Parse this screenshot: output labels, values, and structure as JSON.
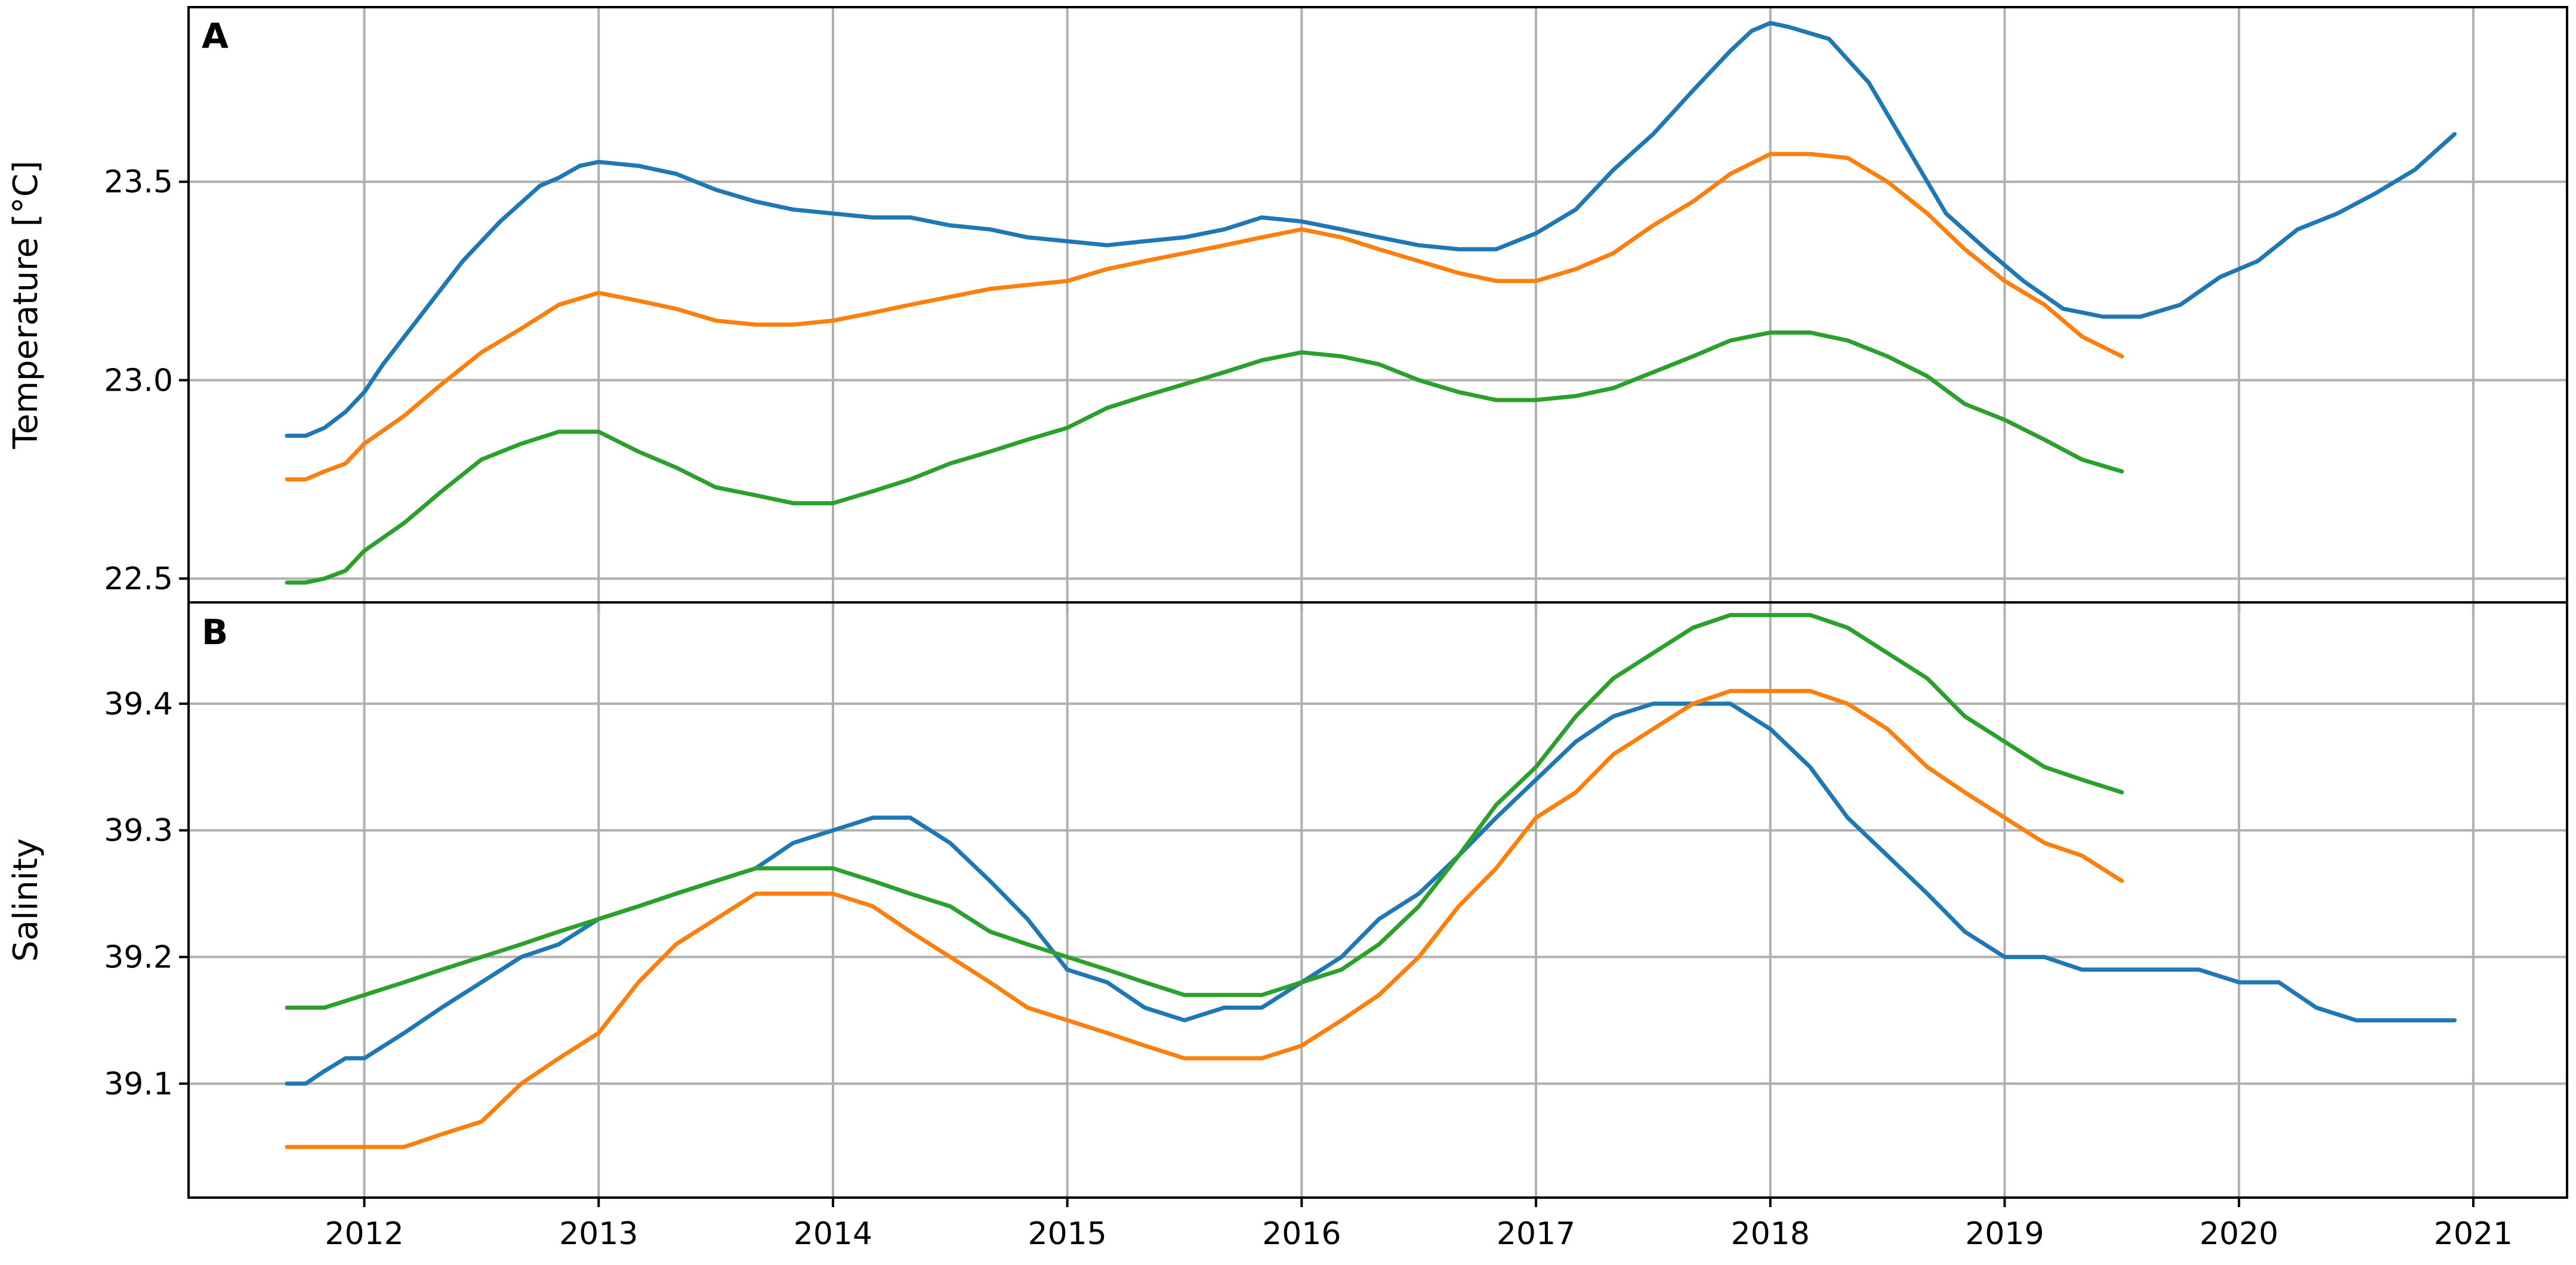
{
  "chart_data": [
    {
      "type": "line",
      "panel_label": "A",
      "title": "",
      "xlabel": "",
      "ylabel": "Temperature [°C]",
      "xlim": [
        2011.25,
        2021.4
      ],
      "ylim": [
        22.44,
        23.94
      ],
      "xticks": [
        2012,
        2013,
        2014,
        2015,
        2016,
        2017,
        2018,
        2019,
        2020,
        2021
      ],
      "yticks": [
        22.5,
        23.0,
        23.5
      ],
      "ytick_labels": [
        "22.5",
        "23.0",
        "23.5"
      ],
      "grid": true,
      "series": [
        {
          "color": "#1f77b4",
          "x": [
            2011.67,
            2011.75,
            2011.83,
            2011.92,
            2012.0,
            2012.08,
            2012.25,
            2012.42,
            2012.58,
            2012.75,
            2012.83,
            2012.92,
            2013.0,
            2013.17,
            2013.33,
            2013.5,
            2013.67,
            2013.83,
            2014.0,
            2014.17,
            2014.33,
            2014.5,
            2014.67,
            2014.83,
            2015.0,
            2015.17,
            2015.33,
            2015.5,
            2015.67,
            2015.83,
            2016.0,
            2016.17,
            2016.33,
            2016.5,
            2016.67,
            2016.83,
            2017.0,
            2017.17,
            2017.33,
            2017.5,
            2017.67,
            2017.83,
            2017.92,
            2018.0,
            2018.08,
            2018.25,
            2018.42,
            2018.58,
            2018.75,
            2018.92,
            2019.08,
            2019.25,
            2019.42,
            2019.58,
            2019.75,
            2019.92,
            2020.08,
            2020.25,
            2020.42,
            2020.58,
            2020.75,
            2020.92
          ],
          "y": [
            22.86,
            22.86,
            22.88,
            22.92,
            22.97,
            23.04,
            23.17,
            23.3,
            23.4,
            23.49,
            23.51,
            23.54,
            23.55,
            23.54,
            23.52,
            23.48,
            23.45,
            23.43,
            23.42,
            23.41,
            23.41,
            23.39,
            23.38,
            23.36,
            23.35,
            23.34,
            23.35,
            23.36,
            23.38,
            23.41,
            23.4,
            23.38,
            23.36,
            23.34,
            23.33,
            23.33,
            23.37,
            23.43,
            23.53,
            23.62,
            23.73,
            23.83,
            23.88,
            23.9,
            23.89,
            23.86,
            23.75,
            23.59,
            23.42,
            23.33,
            23.25,
            23.18,
            23.16,
            23.16,
            23.19,
            23.26,
            23.3,
            23.38,
            23.42,
            23.47,
            23.53,
            23.62
          ]
        },
        {
          "color": "#ff7f0e",
          "x": [
            2011.67,
            2011.75,
            2011.83,
            2011.92,
            2012.0,
            2012.17,
            2012.33,
            2012.5,
            2012.67,
            2012.83,
            2013.0,
            2013.17,
            2013.33,
            2013.5,
            2013.67,
            2013.83,
            2014.0,
            2014.17,
            2014.33,
            2014.5,
            2014.67,
            2014.83,
            2015.0,
            2015.17,
            2015.33,
            2015.5,
            2015.67,
            2015.83,
            2016.0,
            2016.17,
            2016.33,
            2016.5,
            2016.67,
            2016.83,
            2017.0,
            2017.17,
            2017.33,
            2017.5,
            2017.67,
            2017.83,
            2018.0,
            2018.17,
            2018.33,
            2018.5,
            2018.67,
            2018.83,
            2019.0,
            2019.17,
            2019.33,
            2019.5
          ],
          "y": [
            22.75,
            22.75,
            22.77,
            22.79,
            22.84,
            22.91,
            22.99,
            23.07,
            23.13,
            23.19,
            23.22,
            23.2,
            23.18,
            23.15,
            23.14,
            23.14,
            23.15,
            23.17,
            23.19,
            23.21,
            23.23,
            23.24,
            23.25,
            23.28,
            23.3,
            23.32,
            23.34,
            23.36,
            23.38,
            23.36,
            23.33,
            23.3,
            23.27,
            23.25,
            23.25,
            23.28,
            23.32,
            23.39,
            23.45,
            23.52,
            23.57,
            23.57,
            23.56,
            23.5,
            23.42,
            23.33,
            23.25,
            23.19,
            23.11,
            23.06
          ]
        },
        {
          "color": "#2ca02c",
          "x": [
            2011.67,
            2011.75,
            2011.83,
            2011.92,
            2012.0,
            2012.17,
            2012.33,
            2012.5,
            2012.67,
            2012.83,
            2013.0,
            2013.17,
            2013.33,
            2013.5,
            2013.67,
            2013.83,
            2014.0,
            2014.17,
            2014.33,
            2014.5,
            2014.67,
            2014.83,
            2015.0,
            2015.17,
            2015.33,
            2015.5,
            2015.67,
            2015.83,
            2016.0,
            2016.17,
            2016.33,
            2016.5,
            2016.67,
            2016.83,
            2017.0,
            2017.17,
            2017.33,
            2017.5,
            2017.67,
            2017.83,
            2018.0,
            2018.17,
            2018.33,
            2018.5,
            2018.67,
            2018.83,
            2019.0,
            2019.17,
            2019.33,
            2019.5
          ],
          "y": [
            22.49,
            22.49,
            22.5,
            22.52,
            22.57,
            22.64,
            22.72,
            22.8,
            22.84,
            22.87,
            22.87,
            22.82,
            22.78,
            22.73,
            22.71,
            22.69,
            22.69,
            22.72,
            22.75,
            22.79,
            22.82,
            22.85,
            22.88,
            22.93,
            22.96,
            22.99,
            23.02,
            23.05,
            23.07,
            23.06,
            23.04,
            23.0,
            22.97,
            22.95,
            22.95,
            22.96,
            22.98,
            23.02,
            23.06,
            23.1,
            23.12,
            23.12,
            23.1,
            23.06,
            23.01,
            22.94,
            22.9,
            22.85,
            22.8,
            22.77
          ]
        }
      ]
    },
    {
      "type": "line",
      "panel_label": "B",
      "title": "",
      "xlabel": "",
      "ylabel": "Salinity",
      "xlim": [
        2011.25,
        2021.4
      ],
      "ylim": [
        39.01,
        39.48
      ],
      "xticks": [
        2012,
        2013,
        2014,
        2015,
        2016,
        2017,
        2018,
        2019,
        2020,
        2021
      ],
      "xtick_labels": [
        "2012",
        "2013",
        "2014",
        "2015",
        "2016",
        "2017",
        "2018",
        "2019",
        "2020",
        "2021"
      ],
      "yticks": [
        39.1,
        39.2,
        39.3,
        39.4
      ],
      "ytick_labels": [
        "39.1",
        "39.2",
        "39.3",
        "39.4"
      ],
      "grid": true,
      "series": [
        {
          "color": "#1f77b4",
          "x": [
            2011.67,
            2011.75,
            2011.83,
            2011.92,
            2012.0,
            2012.17,
            2012.33,
            2012.5,
            2012.67,
            2012.83,
            2013.0,
            2013.17,
            2013.33,
            2013.5,
            2013.67,
            2013.83,
            2014.0,
            2014.17,
            2014.33,
            2014.5,
            2014.67,
            2014.83,
            2015.0,
            2015.17,
            2015.33,
            2015.5,
            2015.67,
            2015.83,
            2016.0,
            2016.17,
            2016.33,
            2016.5,
            2016.67,
            2016.83,
            2017.0,
            2017.17,
            2017.33,
            2017.5,
            2017.67,
            2017.83,
            2018.0,
            2018.17,
            2018.33,
            2018.5,
            2018.67,
            2018.83,
            2019.0,
            2019.17,
            2019.33,
            2019.5,
            2019.67,
            2019.83,
            2020.0,
            2020.17,
            2020.33,
            2020.5,
            2020.67,
            2020.83,
            2020.92
          ],
          "y": [
            39.1,
            39.1,
            39.11,
            39.12,
            39.12,
            39.14,
            39.16,
            39.18,
            39.2,
            39.21,
            39.23,
            39.24,
            39.25,
            39.26,
            39.27,
            39.29,
            39.3,
            39.31,
            39.31,
            39.29,
            39.26,
            39.23,
            39.19,
            39.18,
            39.16,
            39.15,
            39.16,
            39.16,
            39.18,
            39.2,
            39.23,
            39.25,
            39.28,
            39.31,
            39.34,
            39.37,
            39.39,
            39.4,
            39.4,
            39.4,
            39.38,
            39.35,
            39.31,
            39.28,
            39.25,
            39.22,
            39.2,
            39.2,
            39.19,
            39.19,
            39.19,
            39.19,
            39.18,
            39.18,
            39.16,
            39.15,
            39.15,
            39.15,
            39.15
          ]
        },
        {
          "color": "#ff7f0e",
          "x": [
            2011.67,
            2011.83,
            2012.0,
            2012.17,
            2012.33,
            2012.5,
            2012.67,
            2012.83,
            2013.0,
            2013.17,
            2013.33,
            2013.5,
            2013.67,
            2013.83,
            2014.0,
            2014.17,
            2014.33,
            2014.5,
            2014.67,
            2014.83,
            2015.0,
            2015.17,
            2015.33,
            2015.5,
            2015.67,
            2015.83,
            2016.0,
            2016.17,
            2016.33,
            2016.5,
            2016.67,
            2016.83,
            2017.0,
            2017.17,
            2017.33,
            2017.5,
            2017.67,
            2017.83,
            2018.0,
            2018.17,
            2018.33,
            2018.5,
            2018.67,
            2018.83,
            2019.0,
            2019.17,
            2019.33,
            2019.5
          ],
          "y": [
            39.05,
            39.05,
            39.05,
            39.05,
            39.06,
            39.07,
            39.1,
            39.12,
            39.14,
            39.18,
            39.21,
            39.23,
            39.25,
            39.25,
            39.25,
            39.24,
            39.22,
            39.2,
            39.18,
            39.16,
            39.15,
            39.14,
            39.13,
            39.12,
            39.12,
            39.12,
            39.13,
            39.15,
            39.17,
            39.2,
            39.24,
            39.27,
            39.31,
            39.33,
            39.36,
            39.38,
            39.4,
            39.41,
            39.41,
            39.41,
            39.4,
            39.38,
            39.35,
            39.33,
            39.31,
            39.29,
            39.28,
            39.26
          ]
        },
        {
          "color": "#2ca02c",
          "x": [
            2011.67,
            2011.83,
            2012.0,
            2012.17,
            2012.33,
            2012.5,
            2012.67,
            2012.83,
            2013.0,
            2013.17,
            2013.33,
            2013.5,
            2013.67,
            2013.83,
            2014.0,
            2014.17,
            2014.33,
            2014.5,
            2014.67,
            2014.83,
            2015.0,
            2015.17,
            2015.33,
            2015.5,
            2015.67,
            2015.83,
            2016.0,
            2016.17,
            2016.33,
            2016.5,
            2016.67,
            2016.83,
            2017.0,
            2017.17,
            2017.33,
            2017.5,
            2017.67,
            2017.83,
            2018.0,
            2018.17,
            2018.33,
            2018.5,
            2018.67,
            2018.83,
            2019.0,
            2019.17,
            2019.33,
            2019.5
          ],
          "y": [
            39.16,
            39.16,
            39.17,
            39.18,
            39.19,
            39.2,
            39.21,
            39.22,
            39.23,
            39.24,
            39.25,
            39.26,
            39.27,
            39.27,
            39.27,
            39.26,
            39.25,
            39.24,
            39.22,
            39.21,
            39.2,
            39.19,
            39.18,
            39.17,
            39.17,
            39.17,
            39.18,
            39.19,
            39.21,
            39.24,
            39.28,
            39.32,
            39.35,
            39.39,
            39.42,
            39.44,
            39.46,
            39.47,
            39.47,
            39.47,
            39.46,
            39.44,
            39.42,
            39.39,
            39.37,
            39.35,
            39.34,
            39.33
          ]
        }
      ]
    }
  ]
}
